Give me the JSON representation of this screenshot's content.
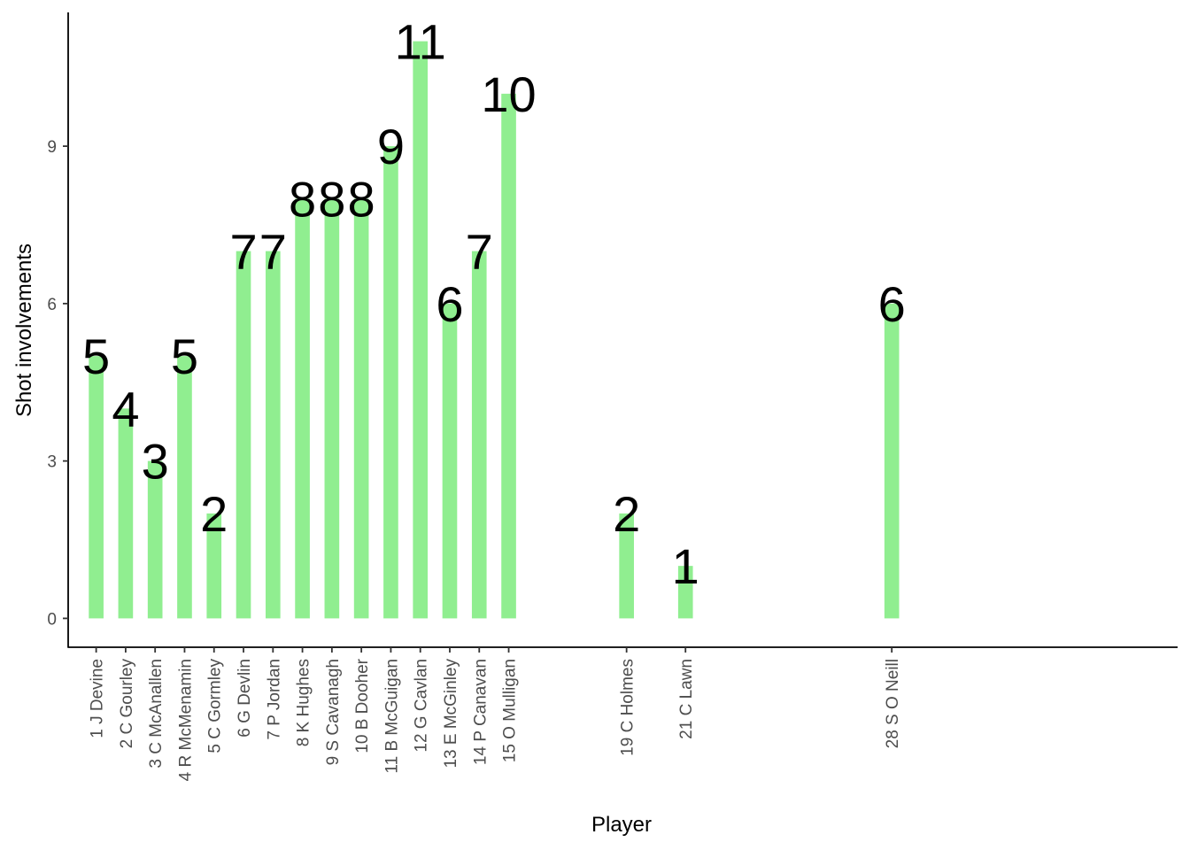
{
  "chart_data": {
    "type": "bar",
    "title": "",
    "xlabel": "Player",
    "ylabel": "Shot involvements",
    "x": [
      1,
      2,
      3,
      4,
      5,
      6,
      7,
      8,
      9,
      10,
      11,
      12,
      13,
      14,
      15,
      19,
      21,
      28
    ],
    "categories": [
      "1 J Devine",
      "2 C Gourley",
      "3 C McAnallen",
      "4 R McMenamin",
      "5 C Gormley",
      "6 G Devlin",
      "7 P Jordan",
      "8 K Hughes",
      "9 S Cavanagh",
      "10 B Dooher",
      "11 B McGuigan",
      "12 G Cavlan",
      "13 E McGinley",
      "14 P Canavan",
      "15 O Mulligan",
      "19 C Holmes",
      "21 C Lawn",
      "28 S O Neill"
    ],
    "values": [
      5,
      4,
      3,
      5,
      2,
      7,
      7,
      8,
      8,
      8,
      9,
      11,
      6,
      7,
      10,
      2,
      1,
      6
    ],
    "data_labels": [
      "5",
      "4",
      "3",
      "5",
      "2",
      "7",
      "7",
      "8",
      "8",
      "8",
      "9",
      "11",
      "6",
      "7",
      "10",
      "2",
      "1",
      "6"
    ],
    "xlim": [
      0.05,
      37.7
    ],
    "ylim": [
      -0.55,
      11.55
    ],
    "yticks": [
      0,
      3,
      6,
      9
    ],
    "ytick_labels": [
      "0",
      "3",
      "6",
      "9"
    ],
    "bar_color": "#90EE90",
    "grid": false,
    "legend": "none"
  }
}
